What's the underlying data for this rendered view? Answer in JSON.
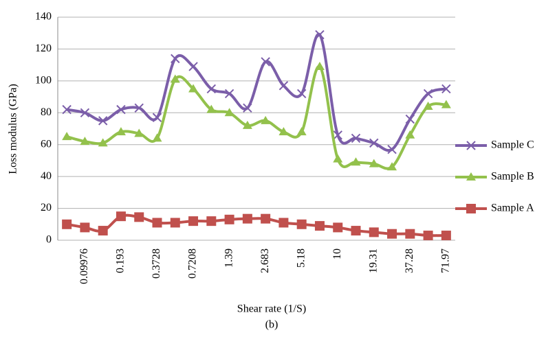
{
  "chart_data": {
    "type": "line",
    "y_label": "Loss modulus (GPa)",
    "x_label": "Shear rate (1/S)",
    "caption": "(b)",
    "categories": [
      null,
      "0.09976",
      null,
      "0.193",
      null,
      "0.3728",
      null,
      "0.7208",
      null,
      "1.39",
      null,
      "2.683",
      null,
      "5.18",
      null,
      "10",
      null,
      "19.31",
      null,
      "37.28",
      null,
      "71.97"
    ],
    "series": [
      {
        "name": "Sample C",
        "color": "#7b5ea9",
        "marker": "x",
        "values": [
          82,
          80,
          75,
          82,
          83,
          77,
          114,
          109,
          95,
          92,
          83,
          112,
          97,
          92,
          129,
          66,
          64,
          61,
          57,
          76,
          92,
          95
        ]
      },
      {
        "name": "Sample B",
        "color": "#93c14c",
        "marker": "triangle",
        "values": [
          65,
          62,
          61,
          68,
          67,
          64,
          101,
          95,
          82,
          80,
          72,
          75,
          68,
          68,
          109,
          51,
          49,
          48,
          46,
          66,
          84,
          85
        ]
      },
      {
        "name": "Sample A",
        "color": "#c0504d",
        "marker": "square",
        "values": [
          10,
          8,
          6,
          15,
          14.5,
          11,
          11,
          12,
          12,
          13,
          13.5,
          13.5,
          11,
          10,
          9,
          8,
          6,
          5,
          4,
          4,
          3,
          3
        ]
      }
    ],
    "ylim": [
      0,
      140
    ],
    "yticks": [
      0,
      20,
      40,
      60,
      80,
      100,
      120,
      140
    ],
    "grid": true,
    "legend": "right"
  }
}
